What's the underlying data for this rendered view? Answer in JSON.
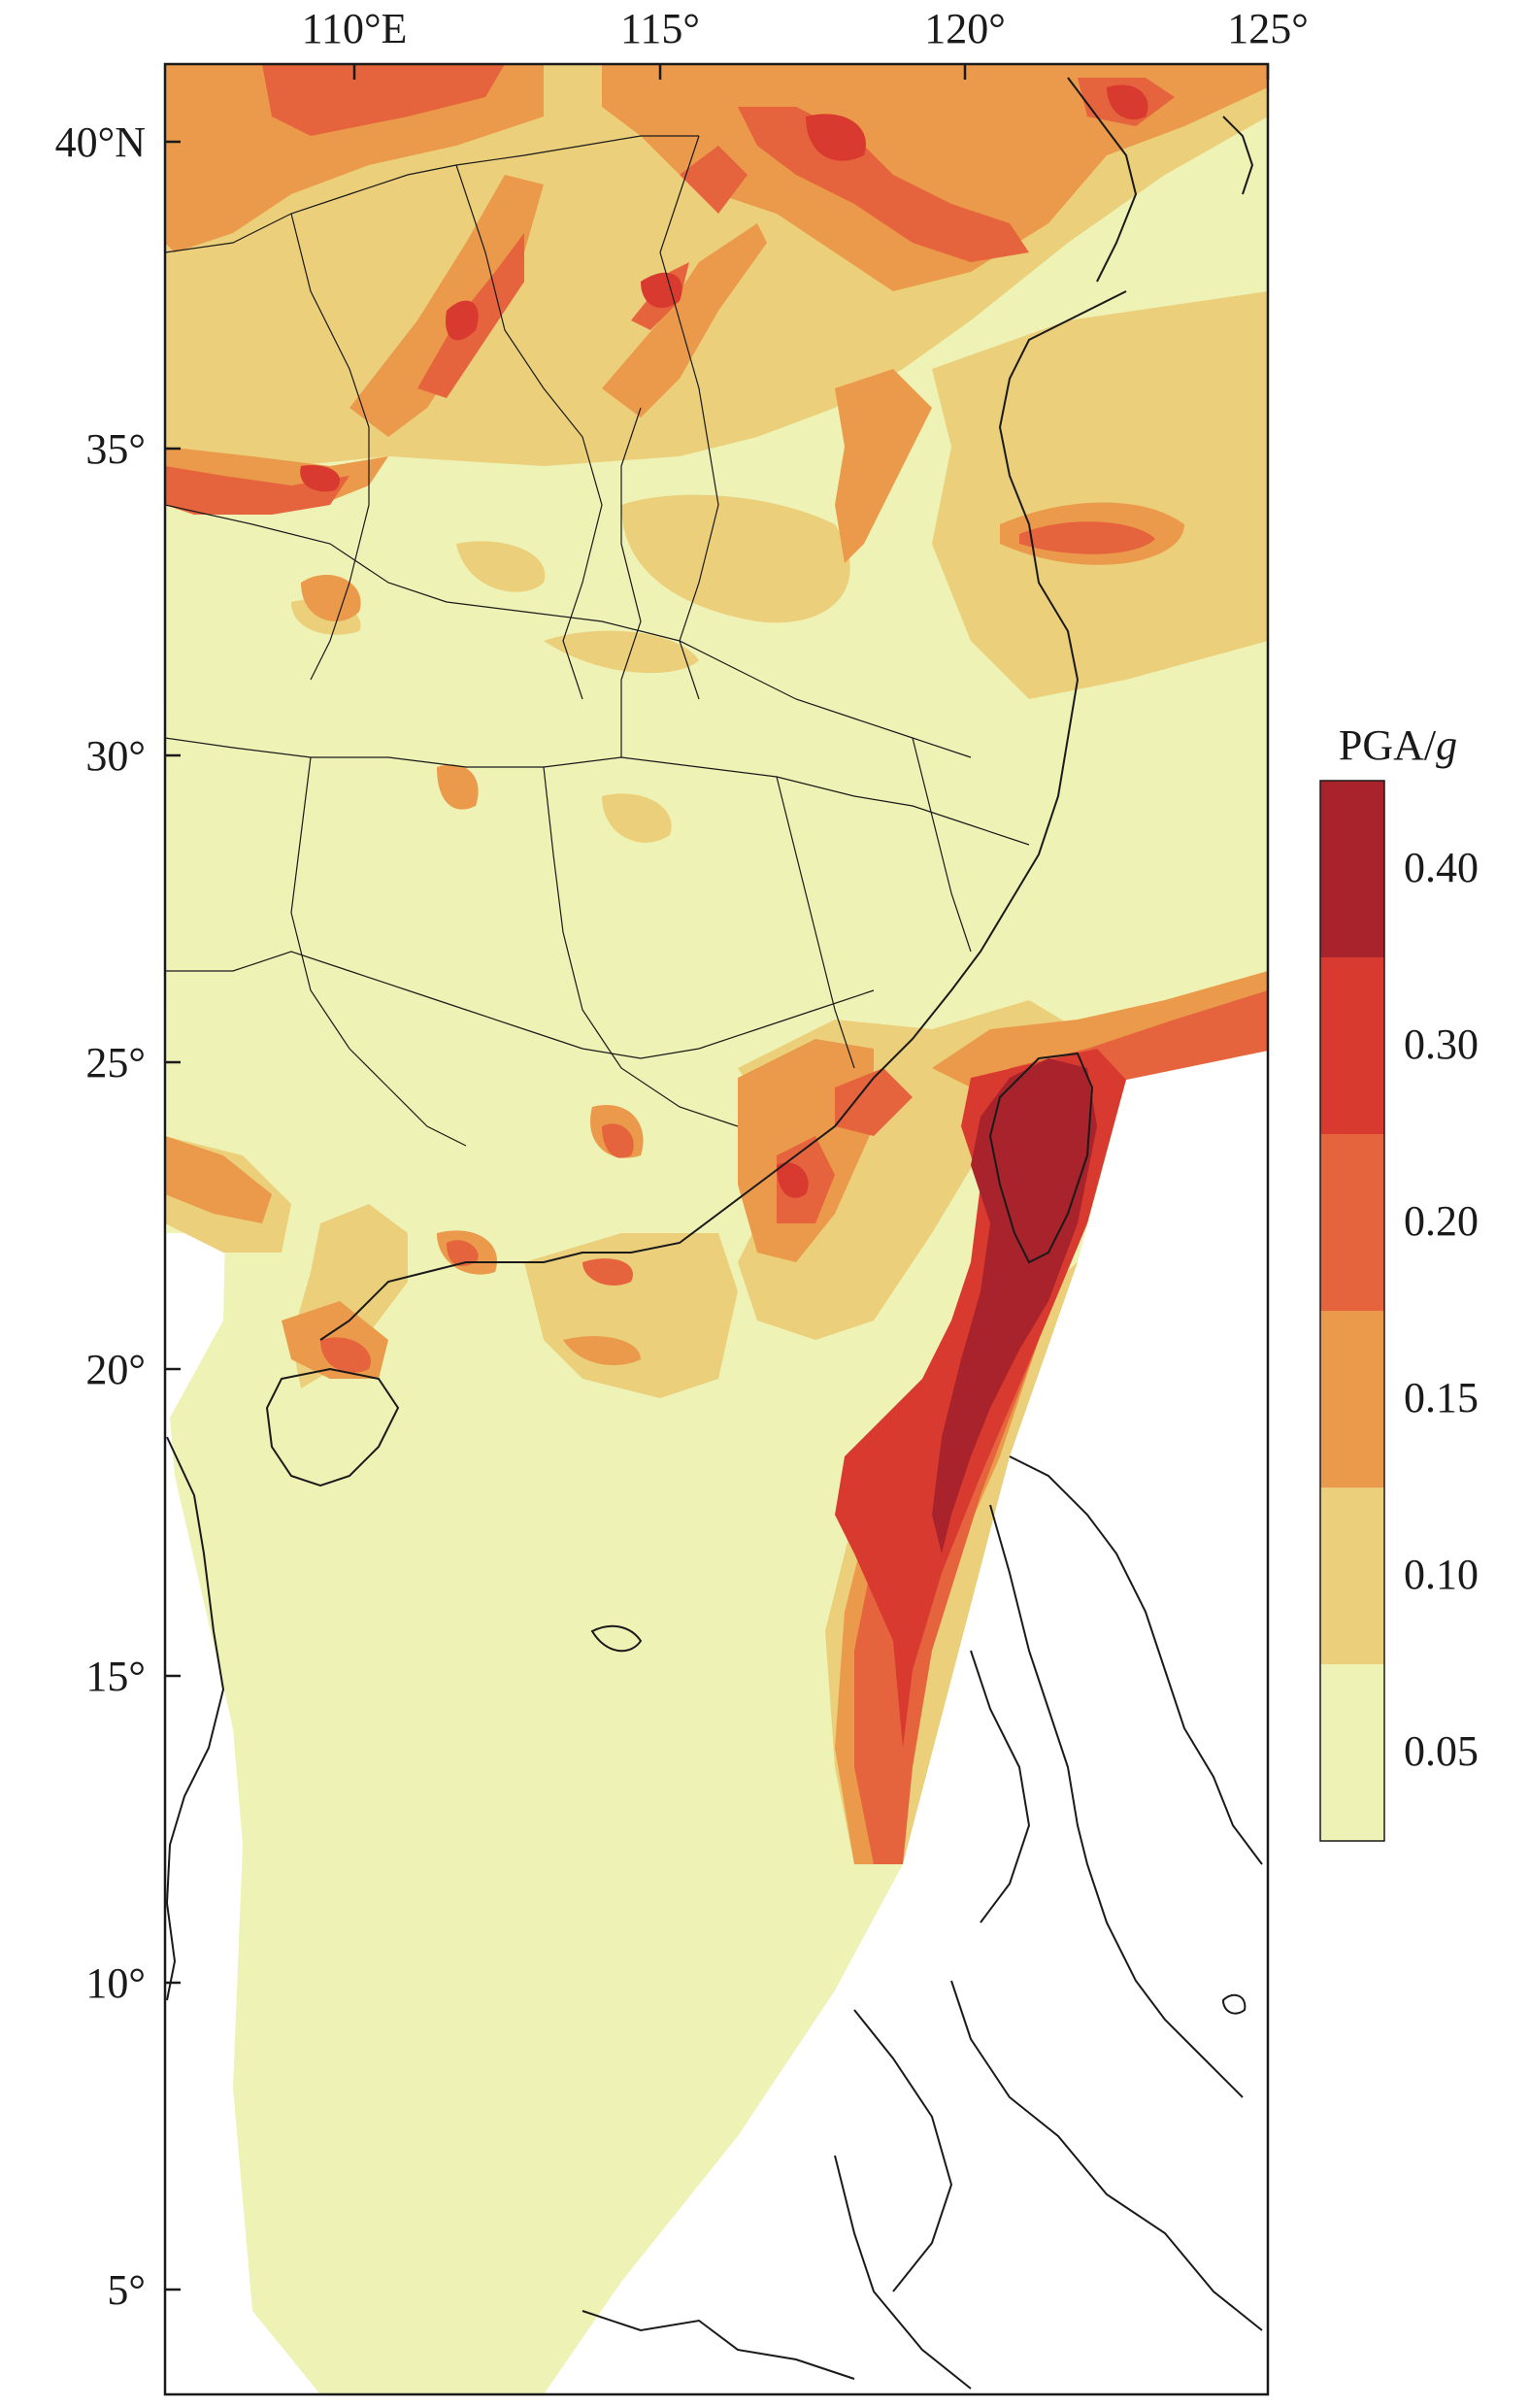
{
  "map": {
    "axes": {
      "longitude_ticks": [
        "110°E",
        "115°",
        "120°",
        "125°"
      ],
      "latitude_ticks": [
        "40°N",
        "35°",
        "30°",
        "25°",
        "20°",
        "15°",
        "10°",
        "5°"
      ]
    },
    "legend": {
      "title_prefix": "PGA/",
      "title_var": "g",
      "classes": [
        {
          "label": "0.40",
          "color": "#A8232B"
        },
        {
          "label": "0.30",
          "color": "#D93A2F"
        },
        {
          "label": "0.20",
          "color": "#E5633D"
        },
        {
          "label": "0.15",
          "color": "#EA9A4A"
        },
        {
          "label": "0.10",
          "color": "#EBCF7A"
        },
        {
          "label": "0.05",
          "color": "#EEF2B4"
        }
      ]
    },
    "colors": {
      "base": "#EEF2B4",
      "ocean_outside": "#FFFFFF",
      "line": "#1A1A1A"
    }
  }
}
